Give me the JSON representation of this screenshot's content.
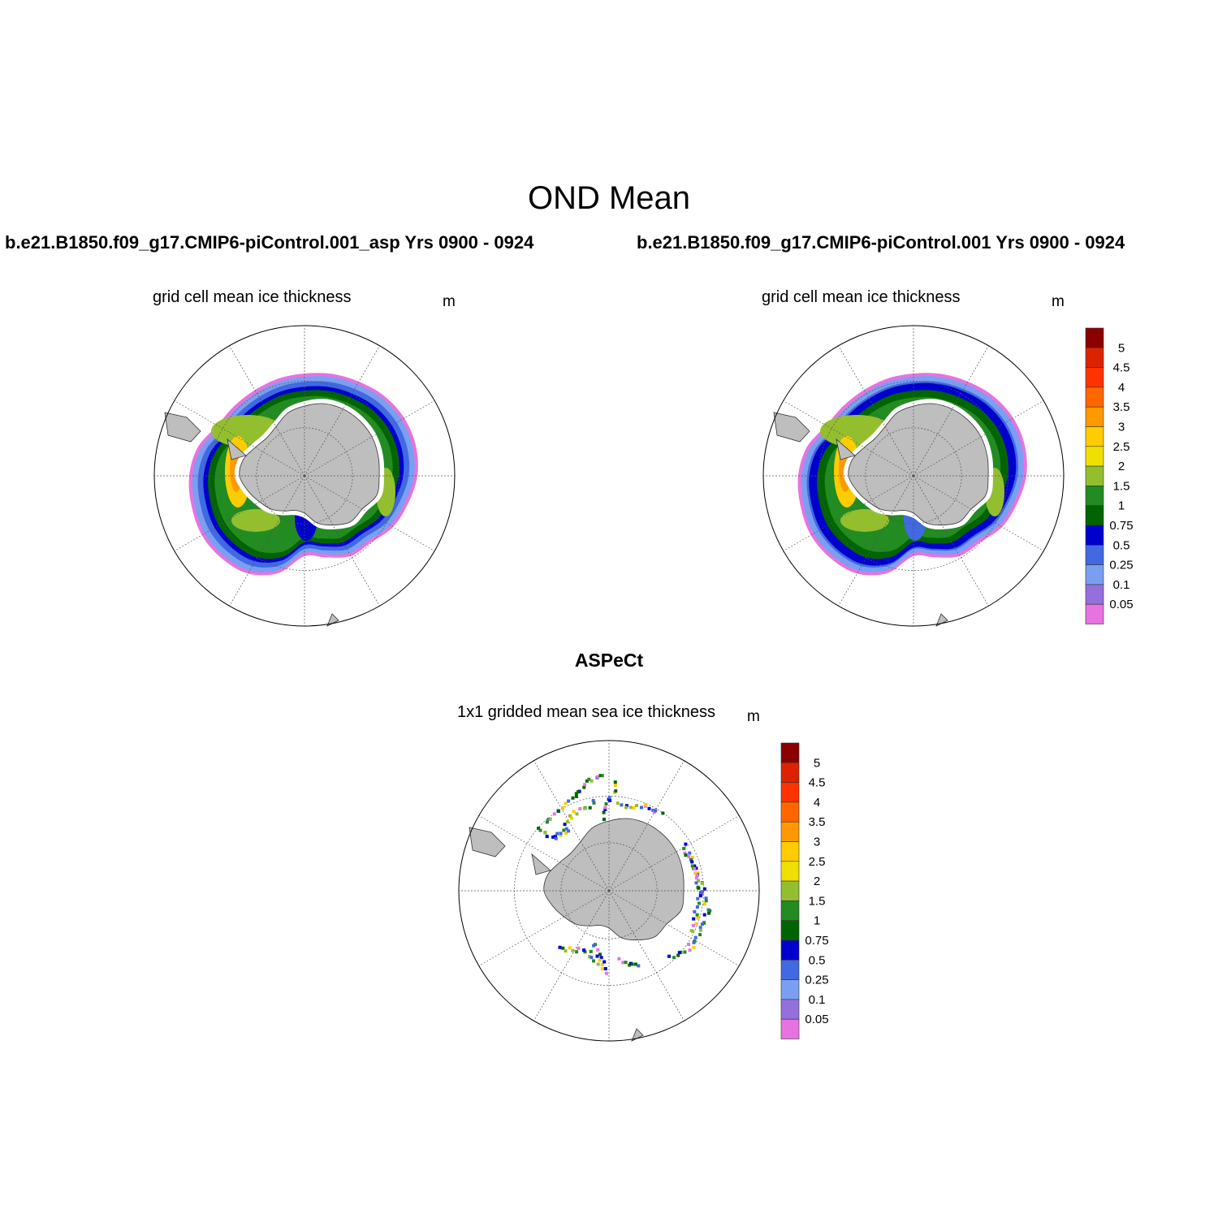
{
  "figure": {
    "title": "OND Mean",
    "panels": {
      "left": {
        "case": "b.e21.B1850.f09_g17.CMIP6-piControl.001_asp  Yrs 0900 - 0924",
        "subtitle": "grid cell mean ice thickness",
        "unit": "m"
      },
      "right": {
        "case": "b.e21.B1850.f09_g17.CMIP6-piControl.001  Yrs 0900 - 0924",
        "subtitle": "grid cell mean ice thickness",
        "unit": "m"
      },
      "obs": {
        "header": "ASPeCt",
        "subtitle": "1x1 gridded mean sea ice thickness",
        "unit": "m"
      }
    }
  },
  "colorbar": {
    "labels": [
      "5",
      "4.5",
      "4",
      "3.5",
      "3",
      "2.5",
      "2",
      "1.5",
      "1",
      "0.75",
      "0.5",
      "0.25",
      "0.1",
      "0.05"
    ],
    "colors": [
      "#8b0000",
      "#dd2200",
      "#ff3300",
      "#ff6600",
      "#ff9900",
      "#ffcc00",
      "#f0e000",
      "#93bf2f",
      "#228b22",
      "#006400",
      "#0000cd",
      "#4169e1",
      "#7b9ff0",
      "#9370db",
      "#e673e0"
    ],
    "land_color": "#bebebe"
  }
}
